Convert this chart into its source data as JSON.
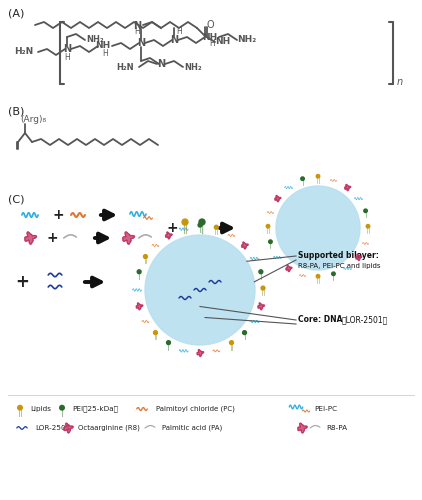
{
  "background_color": "#ffffff",
  "chemical_color": "#555555",
  "panel_labels": [
    "(A)",
    "(B)",
    "(C)"
  ],
  "pei_color": "#3a8a3a",
  "lipid_color_gold": "#c8960c",
  "lipid_color_green": "#2a6a2a",
  "lor_color": "#1a3a9a",
  "r8pa_color": "#c03060",
  "peipc_color_cyan": "#30b0e0",
  "peipc_color_orange": "#e07830",
  "pa_color": "#aaaaaa",
  "nanoparticle_color": "#b8dff0",
  "nanoparticle_edge": "#80b8d8",
  "arrow_color": "#111111",
  "supported_bilayer_bold": "Supported bilayer:",
  "supported_bilayer_text": "R8-PA, PEI-PC and lipids",
  "core_text_bold": "Core: DNA",
  "core_text": "（LOR-2501）",
  "legend_row1": [
    "Lipids",
    "PEI（25-kDa）",
    "Palmitoyl chloride (PC)",
    "PEI-PC"
  ],
  "legend_row2": [
    "LOR-2501",
    "Octaarginine (R8)",
    "Palmitic acid (PA)",
    "R8-PA"
  ]
}
